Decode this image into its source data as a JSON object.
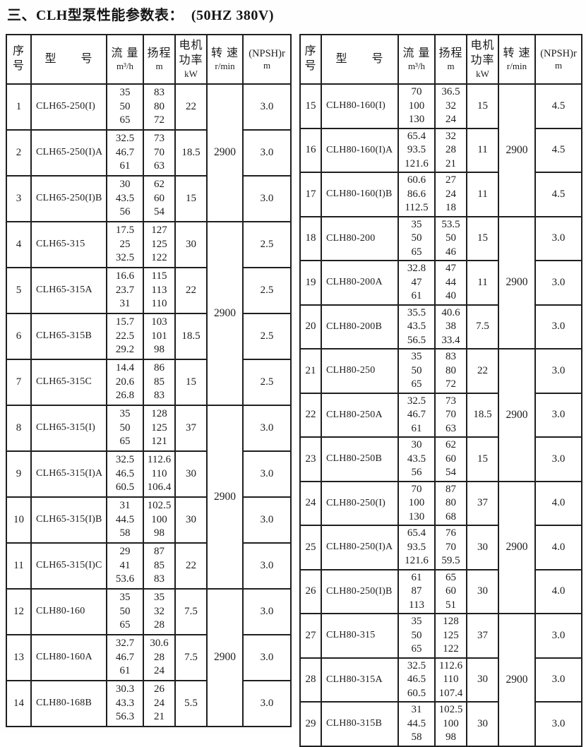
{
  "title": "三、CLH型泵性能参数表：  (50HZ 380V)",
  "colors": {
    "ink": "#1c1c1c",
    "paper": "#ffffff",
    "border": "#1f1f1f"
  },
  "columns": {
    "no": {
      "label": "序\n号",
      "unit": ""
    },
    "model": {
      "label": "型　　号",
      "unit": ""
    },
    "flow": {
      "label": "流 量",
      "unit": "m³/h"
    },
    "head": {
      "label": "扬程",
      "unit": "m"
    },
    "power": {
      "label": "电机\n功率",
      "unit": "kW"
    },
    "speed": {
      "label": "转 速",
      "unit": "r/min"
    },
    "npsh": {
      "label": "(NPSH)r",
      "unit": "m"
    }
  },
  "tables": [
    {
      "side": "left",
      "groups": [
        {
          "speed": "2900",
          "rows": [
            {
              "no": "1",
              "model": "CLH65-250(I)",
              "flow": "35\n50\n65",
              "head": "83\n80\n72",
              "power": "22",
              "npsh": "3.0"
            },
            {
              "no": "2",
              "model": "CLH65-250(I)A",
              "flow": "32.5\n46.7\n61",
              "head": "73\n70\n63",
              "power": "18.5",
              "npsh": "3.0"
            },
            {
              "no": "3",
              "model": "CLH65-250(I)B",
              "flow": "30\n43.5\n56",
              "head": "62\n60\n54",
              "power": "15",
              "npsh": "3.0"
            }
          ]
        },
        {
          "speed": "2900",
          "rows": [
            {
              "no": "4",
              "model": "CLH65-315",
              "flow": "17.5\n25\n32.5",
              "head": "127\n125\n122",
              "power": "30",
              "npsh": "2.5"
            },
            {
              "no": "5",
              "model": "CLH65-315A",
              "flow": "16.6\n23.7\n31",
              "head": "115\n113\n110",
              "power": "22",
              "npsh": "2.5"
            },
            {
              "no": "6",
              "model": "CLH65-315B",
              "flow": "15.7\n22.5\n29.2",
              "head": "103\n101\n98",
              "power": "18.5",
              "npsh": "2.5"
            },
            {
              "no": "7",
              "model": "CLH65-315C",
              "flow": "14.4\n20.6\n26.8",
              "head": "86\n85\n83",
              "power": "15",
              "npsh": "2.5"
            }
          ]
        },
        {
          "speed": "2900",
          "rows": [
            {
              "no": "8",
              "model": "CLH65-315(I)",
              "flow": "35\n50\n65",
              "head": "128\n125\n121",
              "power": "37",
              "npsh": "3.0"
            },
            {
              "no": "9",
              "model": "CLH65-315(I)A",
              "flow": "32.5\n46.5\n60.5",
              "head": "112.6\n110\n106.4",
              "power": "30",
              "npsh": "3.0"
            },
            {
              "no": "10",
              "model": "CLH65-315(I)B",
              "flow": "31\n44.5\n58",
              "head": "102.5\n100\n98",
              "power": "30",
              "npsh": "3.0"
            },
            {
              "no": "11",
              "model": "CLH65-315(I)C",
              "flow": "29\n41\n53.6",
              "head": "87\n85\n83",
              "power": "22",
              "npsh": "3.0"
            }
          ]
        },
        {
          "speed": "2900",
          "rows": [
            {
              "no": "12",
              "model": "CLH80-160",
              "flow": "35\n50\n65",
              "head": "35\n32\n28",
              "power": "7.5",
              "npsh": "3.0"
            },
            {
              "no": "13",
              "model": "CLH80-160A",
              "flow": "32.7\n46.7\n61",
              "head": "30.6\n28\n24",
              "power": "7.5",
              "npsh": "3.0"
            },
            {
              "no": "14",
              "model": "CLH80-168B",
              "flow": "30.3\n43.3\n56.3",
              "head": "26\n24\n21",
              "power": "5.5",
              "npsh": "3.0"
            }
          ]
        }
      ]
    },
    {
      "side": "right",
      "groups": [
        {
          "speed": "2900",
          "rows": [
            {
              "no": "15",
              "model": "CLH80-160(I)",
              "flow": "70\n100\n130",
              "head": "36.5\n32\n24",
              "power": "15",
              "npsh": "4.5"
            },
            {
              "no": "16",
              "model": "CLH80-160(I)A",
              "flow": "65.4\n93.5\n121.6",
              "head": "32\n28\n21",
              "power": "11",
              "npsh": "4.5"
            },
            {
              "no": "17",
              "model": "CLH80-160(I)B",
              "flow": "60.6\n86.6\n112.5",
              "head": "27\n24\n18",
              "power": "11",
              "npsh": "4.5"
            }
          ]
        },
        {
          "speed": "2900",
          "rows": [
            {
              "no": "18",
              "model": "CLH80-200",
              "flow": "35\n50\n65",
              "head": "53.5\n50\n46",
              "power": "15",
              "npsh": "3.0"
            },
            {
              "no": "19",
              "model": "CLH80-200A",
              "flow": "32.8\n47\n61",
              "head": "47\n44\n40",
              "power": "11",
              "npsh": "3.0"
            },
            {
              "no": "20",
              "model": "CLH80-200B",
              "flow": "35.5\n43.5\n56.5",
              "head": "40.6\n38\n33.4",
              "power": "7.5",
              "npsh": "3.0"
            }
          ]
        },
        {
          "speed": "2900",
          "rows": [
            {
              "no": "21",
              "model": "CLH80-250",
              "flow": "35\n50\n65",
              "head": "83\n80\n72",
              "power": "22",
              "npsh": "3.0"
            },
            {
              "no": "22",
              "model": "CLH80-250A",
              "flow": "32.5\n46.7\n61",
              "head": "73\n70\n63",
              "power": "18.5",
              "npsh": "3.0"
            },
            {
              "no": "23",
              "model": "CLH80-250B",
              "flow": "30\n43.5\n56",
              "head": "62\n60\n54",
              "power": "15",
              "npsh": "3.0"
            }
          ]
        },
        {
          "speed": "2900",
          "rows": [
            {
              "no": "24",
              "model": "CLH80-250(I)",
              "flow": "70\n100\n130",
              "head": "87\n80\n68",
              "power": "37",
              "npsh": "4.0"
            },
            {
              "no": "25",
              "model": "CLH80-250(I)A",
              "flow": "65.4\n93.5\n121.6",
              "head": "76\n70\n59.5",
              "power": "30",
              "npsh": "4.0"
            },
            {
              "no": "26",
              "model": "CLH80-250(I)B",
              "flow": "61\n87\n113",
              "head": "65\n60\n51",
              "power": "30",
              "npsh": "4.0"
            }
          ]
        },
        {
          "speed": "2900",
          "rows": [
            {
              "no": "27",
              "model": "CLH80-315",
              "flow": "35\n50\n65",
              "head": "128\n125\n122",
              "power": "37",
              "npsh": "3.0"
            },
            {
              "no": "28",
              "model": "CLH80-315A",
              "flow": "32.5\n46.5\n60.5",
              "head": "112.6\n110\n107.4",
              "power": "30",
              "npsh": "3.0"
            },
            {
              "no": "29",
              "model": "CLH80-315B",
              "flow": "31\n44.5\n58",
              "head": "102.5\n100\n98",
              "power": "30",
              "npsh": "3.0"
            }
          ]
        }
      ]
    }
  ]
}
